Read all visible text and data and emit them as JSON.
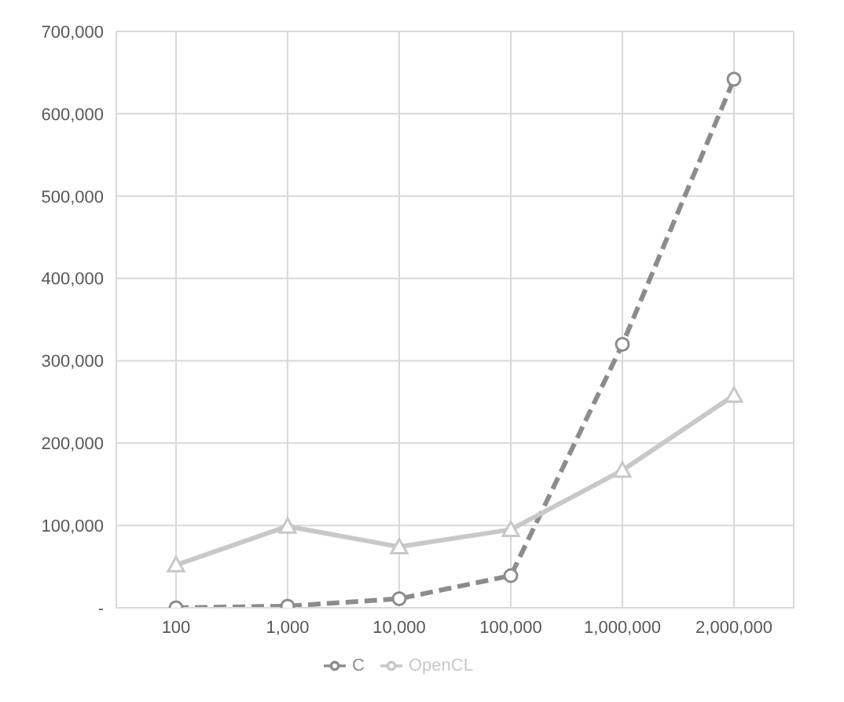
{
  "chart_data": {
    "type": "line",
    "categories": [
      "100",
      "1,000",
      "10,000",
      "100,000",
      "1,000,000",
      "2,000,000"
    ],
    "series": [
      {
        "name": "C",
        "color": "#8c8c8c",
        "marker": "circle",
        "line_style": "dashed",
        "values": [
          0,
          2000,
          11000,
          39000,
          320000,
          642000
        ]
      },
      {
        "name": "OpenCL",
        "color": "#c8c8c8",
        "marker": "triangle",
        "line_style": "solid",
        "values": [
          52000,
          99000,
          74000,
          95000,
          167000,
          258000
        ]
      }
    ],
    "ylim": [
      0,
      700000
    ],
    "yticks": [
      {
        "value": 0,
        "label": "-"
      },
      {
        "value": 100000,
        "label": "100,000"
      },
      {
        "value": 200000,
        "label": "200,000"
      },
      {
        "value": 300000,
        "label": "300,000"
      },
      {
        "value": 400000,
        "label": "400,000"
      },
      {
        "value": 500000,
        "label": "500,000"
      },
      {
        "value": 600000,
        "label": "600,000"
      },
      {
        "value": 700000,
        "label": "700,000"
      }
    ],
    "grid": true,
    "legend": "bottom"
  }
}
